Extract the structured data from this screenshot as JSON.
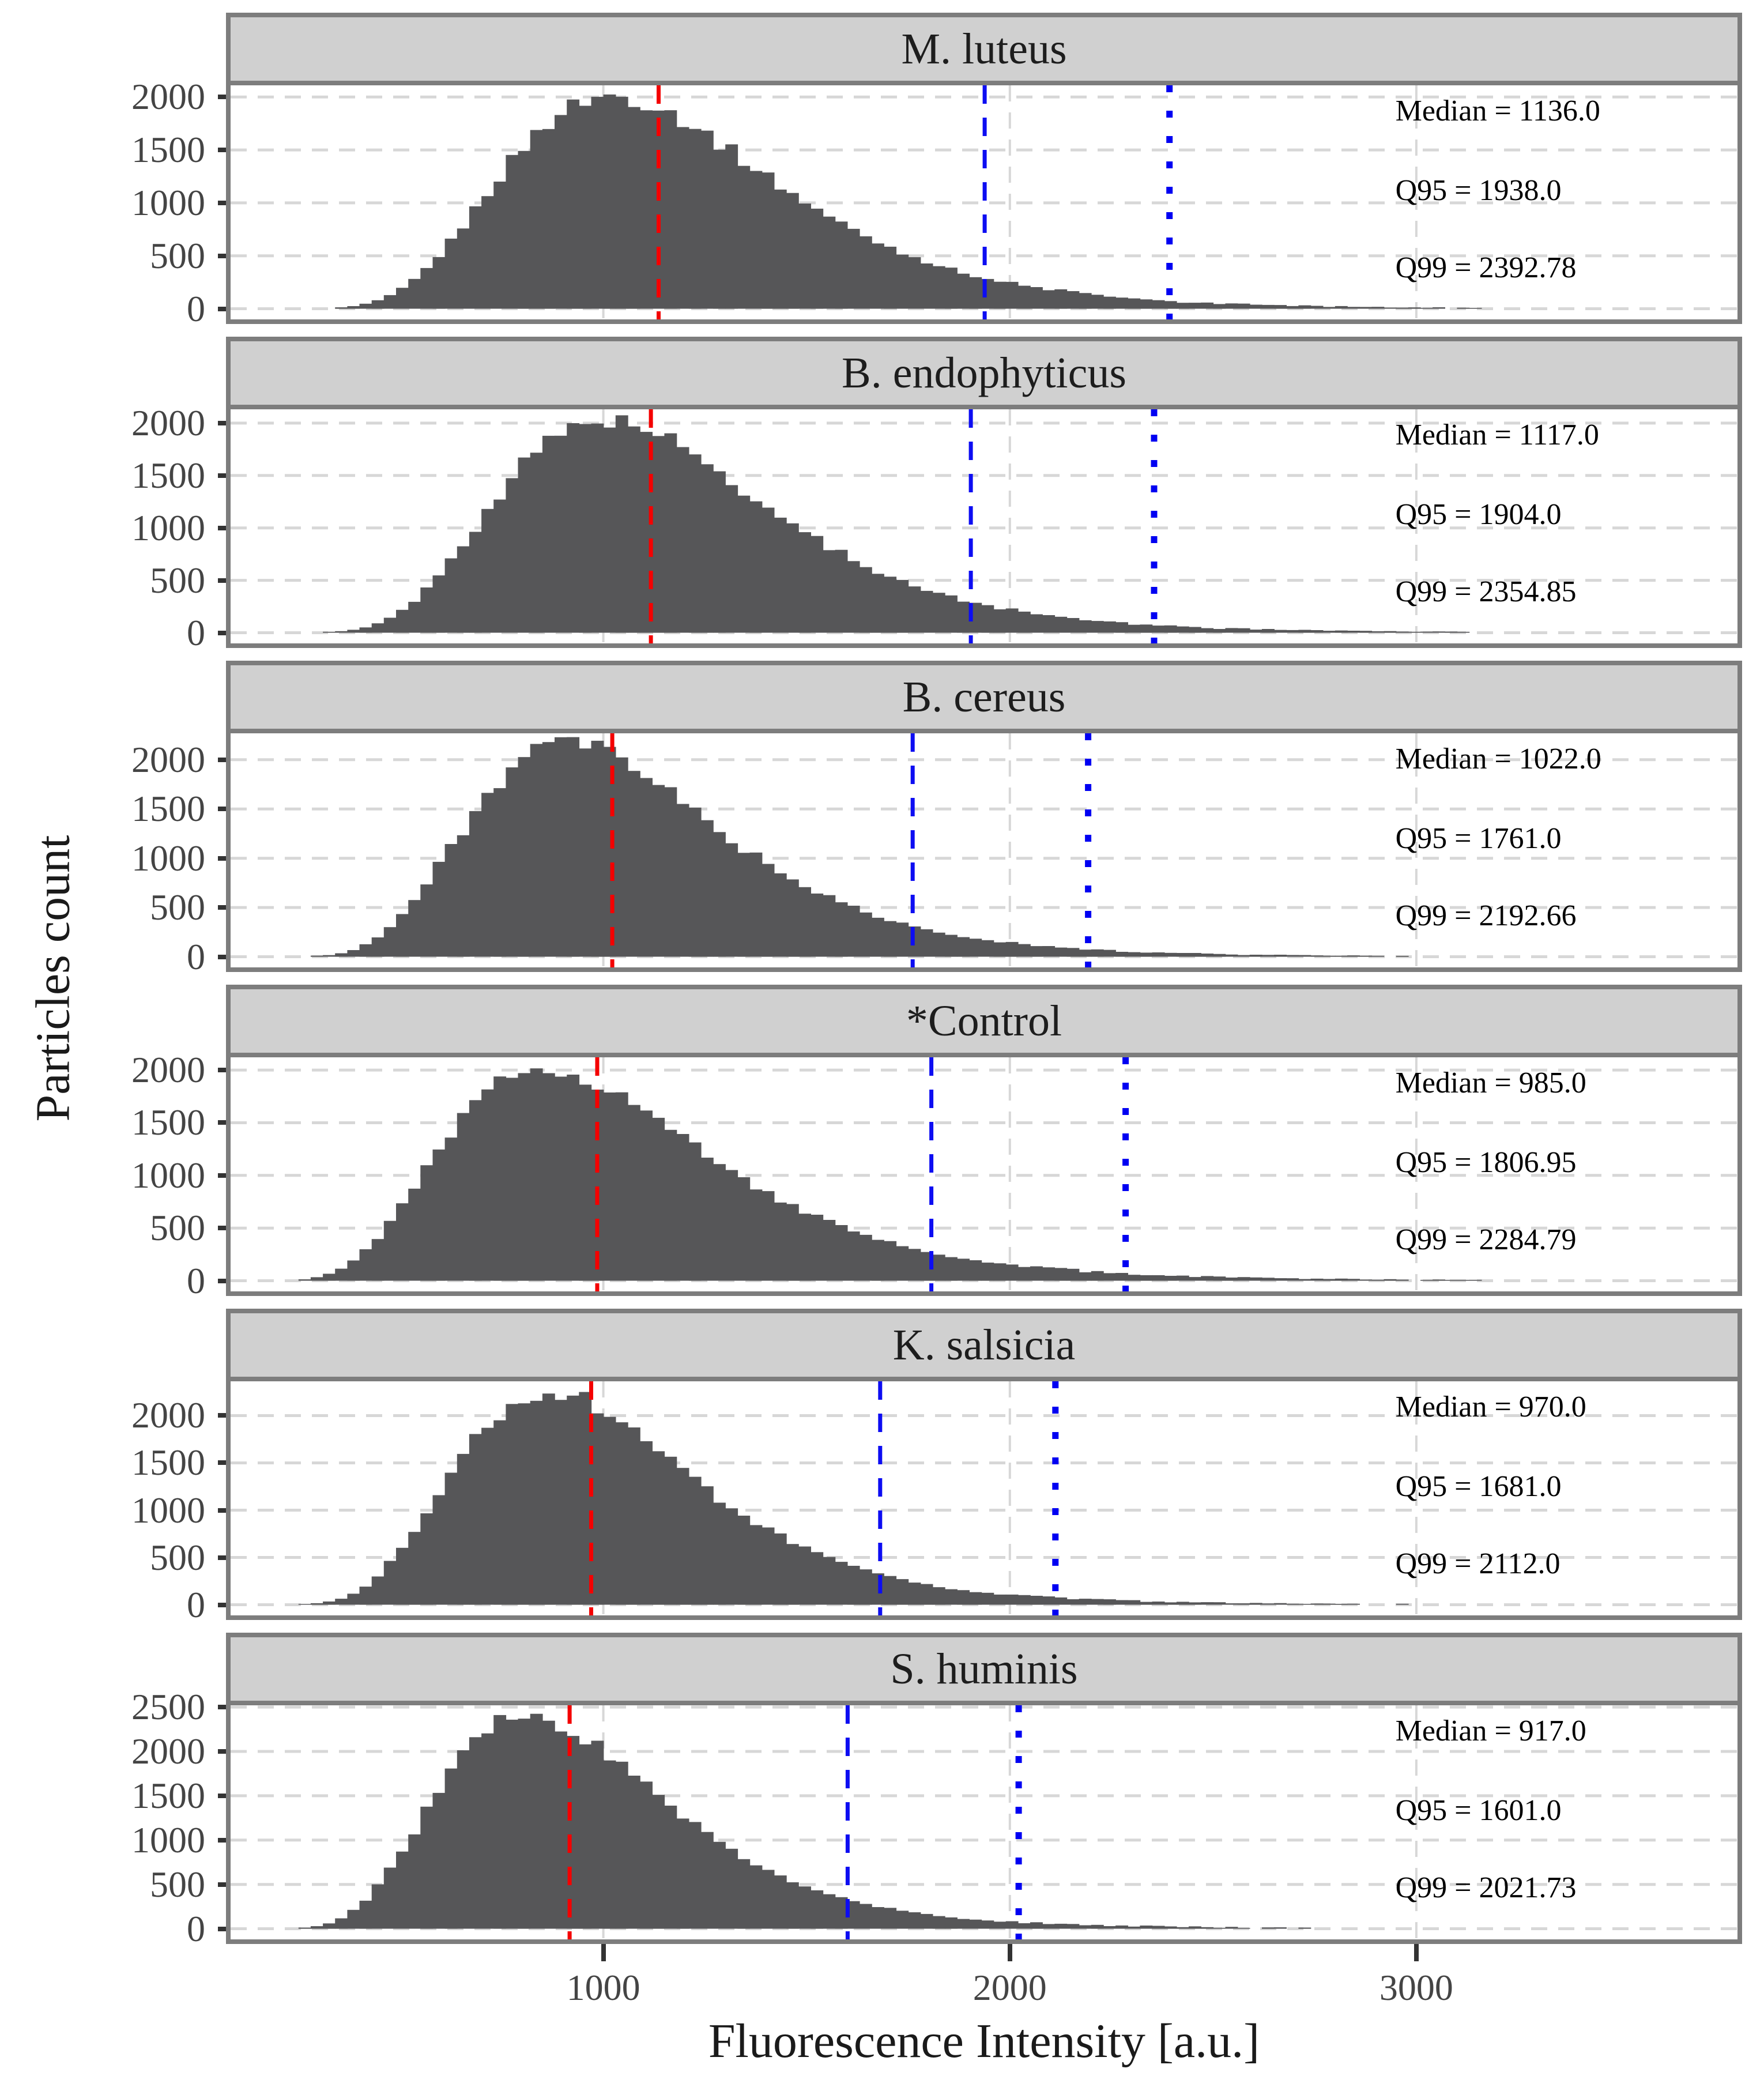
{
  "figure": {
    "y_axis_title": "Particles count",
    "x_axis_title": "Fluorescence Intensity [a.u.]",
    "x_ticks": [
      {
        "value": 1000,
        "label": "1000"
      },
      {
        "value": 2000,
        "label": "2000"
      },
      {
        "value": 3000,
        "label": "3000"
      }
    ],
    "colors": {
      "bar": "#565658",
      "strip_bg": "#d0d0d0",
      "panel_border": "#7d7d7d",
      "grid": "#d7d7d7",
      "median_line": "#f40000",
      "q95_line": "#0d0df2",
      "q99_line": "#0000f2",
      "tick_mark": "#333333",
      "tick_label": "#444444",
      "axis_title": "#1a1a1a",
      "annotation_text": "#000000"
    },
    "panels": [
      {
        "title": "M. luteus",
        "annotations": {
          "median": "Median = 1136.0",
          "q95": "Q95 = 1938.0",
          "q99": "Q99 = 2392.78"
        }
      },
      {
        "title": "B. endophyticus",
        "annotations": {
          "median": "Median = 1117.0",
          "q95": "Q95 = 1904.0",
          "q99": "Q99 = 2354.85"
        }
      },
      {
        "title": "B. cereus",
        "annotations": {
          "median": "Median = 1022.0",
          "q95": "Q95 = 1761.0",
          "q99": "Q99 = 2192.66"
        }
      },
      {
        "title": "*Control",
        "annotations": {
          "median": "Median = 985.0",
          "q95": "Q95 = 1806.95",
          "q99": "Q99 = 2284.79"
        }
      },
      {
        "title": "K. salsicia",
        "annotations": {
          "median": "Median = 970.0",
          "q95": "Q95 = 1681.0",
          "q99": "Q99 = 2112.0"
        }
      },
      {
        "title": "S. huminis",
        "annotations": {
          "median": "Median = 917.0",
          "q95": "Q95 = 1601.0",
          "q99": "Q99 = 2021.73"
        }
      }
    ]
  },
  "chart_data": {
    "type": "histogram",
    "layout": "6 stacked facets sharing one x axis",
    "xlabel": "Fluorescence Intensity [a.u.]",
    "ylabel": "Particles count",
    "x_tick_values": [
      1000,
      2000,
      3000
    ],
    "x_range_displayed": [
      83,
      3790
    ],
    "bin_width": 30,
    "bin_start": 250,
    "vline_styles": {
      "median": "red dashed",
      "q95": "blue dashed",
      "q99": "blue dotted"
    },
    "grid": "light gray dashed horizontal and vertical major gridlines",
    "facets": [
      {
        "title": "M. luteus",
        "median": 1136.0,
        "q95": 1938.0,
        "q99": 2392.78,
        "mode_approx": 1022,
        "peak_count_approx": 2010,
        "lognormal_sigma": 0.3247,
        "y_ticks": [
          0,
          500,
          1000,
          1500,
          2000
        ],
        "y_range_displayed": [
          -100.5,
          2110.5
        ]
      },
      {
        "title": "B. endophyticus",
        "median": 1117.0,
        "q95": 1904.0,
        "q99": 2354.85,
        "mode_approx": 1006,
        "peak_count_approx": 2030,
        "lognormal_sigma": 0.3242,
        "y_ticks": [
          0,
          500,
          1000,
          1500,
          2000
        ],
        "y_range_displayed": [
          -101.5,
          2131.5
        ]
      },
      {
        "title": "B. cereus",
        "median": 1022.0,
        "q95": 1761.0,
        "q99": 2192.66,
        "mode_approx": 916,
        "peak_count_approx": 2160,
        "lognormal_sigma": 0.3308,
        "y_ticks": [
          0,
          500,
          1000,
          1500,
          2000
        ],
        "y_range_displayed": [
          -108,
          2268
        ]
      },
      {
        "title": "*Control",
        "median": 985.0,
        "q95": 1806.95,
        "q99": 2284.79,
        "mode_approx": 860,
        "peak_count_approx": 2020,
        "lognormal_sigma": 0.3688,
        "y_ticks": [
          0,
          500,
          1000,
          1500,
          2000
        ],
        "y_range_displayed": [
          -101,
          2121
        ]
      },
      {
        "title": "K. salsicia",
        "median": 970.0,
        "q95": 1681.0,
        "q99": 2112.0,
        "mode_approx": 867,
        "peak_count_approx": 2250,
        "lognormal_sigma": 0.3345,
        "y_ticks": [
          0,
          500,
          1000,
          1500,
          2000
        ],
        "y_range_displayed": [
          -112.5,
          2362.5
        ]
      },
      {
        "title": "S. huminis",
        "median": 917.0,
        "q95": 1601.0,
        "q99": 2021.73,
        "mode_approx": 818,
        "peak_count_approx": 2400,
        "lognormal_sigma": 0.3387,
        "y_ticks": [
          0,
          500,
          1000,
          1500,
          2000,
          2500
        ],
        "y_range_displayed": [
          -120,
          2520
        ]
      }
    ]
  }
}
